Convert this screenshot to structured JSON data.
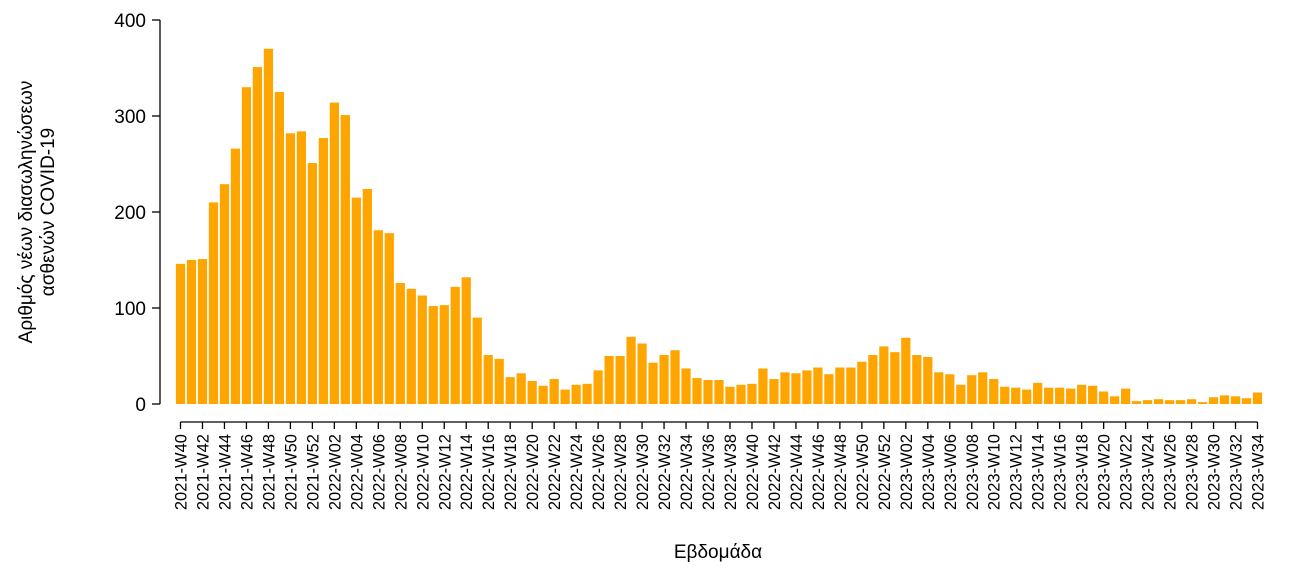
{
  "chart_data": {
    "type": "bar",
    "title": "",
    "xlabel": "Εβδομάδα",
    "ylabel_lines": [
      "Αριθμός νέων διασωληνώσεων",
      "ασθενών COVID-19"
    ],
    "ylim": [
      0,
      400
    ],
    "yticks": [
      0,
      100,
      200,
      300,
      400
    ],
    "bar_color": "#FFA500",
    "grid": false,
    "legend": "none",
    "label_every": 2,
    "categories": [
      "2021-W40",
      "2021-W41",
      "2021-W42",
      "2021-W43",
      "2021-W44",
      "2021-W45",
      "2021-W46",
      "2021-W47",
      "2021-W48",
      "2021-W49",
      "2021-W50",
      "2021-W51",
      "2021-W52",
      "2022-W01",
      "2022-W02",
      "2022-W03",
      "2022-W04",
      "2022-W05",
      "2022-W06",
      "2022-W07",
      "2022-W08",
      "2022-W09",
      "2022-W10",
      "2022-W11",
      "2022-W12",
      "2022-W13",
      "2022-W14",
      "2022-W15",
      "2022-W16",
      "2022-W17",
      "2022-W18",
      "2022-W19",
      "2022-W20",
      "2022-W21",
      "2022-W22",
      "2022-W23",
      "2022-W24",
      "2022-W25",
      "2022-W26",
      "2022-W27",
      "2022-W28",
      "2022-W29",
      "2022-W30",
      "2022-W31",
      "2022-W32",
      "2022-W33",
      "2022-W34",
      "2022-W35",
      "2022-W36",
      "2022-W37",
      "2022-W38",
      "2022-W39",
      "2022-W40",
      "2022-W41",
      "2022-W42",
      "2022-W43",
      "2022-W44",
      "2022-W45",
      "2022-W46",
      "2022-W47",
      "2022-W48",
      "2022-W49",
      "2022-W50",
      "2022-W51",
      "2022-W52",
      "2023-W01",
      "2023-W02",
      "2023-W03",
      "2023-W04",
      "2023-W05",
      "2023-W06",
      "2023-W07",
      "2023-W08",
      "2023-W09",
      "2023-W10",
      "2023-W11",
      "2023-W12",
      "2023-W13",
      "2023-W14",
      "2023-W15",
      "2023-W16",
      "2023-W17",
      "2023-W18",
      "2023-W19",
      "2023-W20",
      "2023-W21",
      "2023-W22",
      "2023-W23",
      "2023-W24",
      "2023-W25",
      "2023-W26",
      "2023-W27",
      "2023-W28",
      "2023-W29",
      "2023-W30",
      "2023-W31",
      "2023-W32",
      "2023-W33",
      "2023-W34"
    ],
    "values": [
      146,
      150,
      151,
      210,
      229,
      266,
      330,
      351,
      370,
      325,
      282,
      284,
      251,
      277,
      314,
      301,
      215,
      224,
      181,
      178,
      126,
      120,
      113,
      102,
      103,
      122,
      132,
      90,
      51,
      47,
      28,
      32,
      24,
      19,
      26,
      15,
      20,
      21,
      35,
      50,
      50,
      70,
      63,
      43,
      51,
      56,
      37,
      27,
      25,
      25,
      18,
      20,
      21,
      37,
      26,
      33,
      32,
      35,
      38,
      31,
      38,
      38,
      44,
      51,
      60,
      54,
      69,
      51,
      49,
      33,
      31,
      20,
      30,
      33,
      26,
      18,
      17,
      15,
      22,
      17,
      17,
      16,
      20,
      19,
      13,
      8,
      16,
      3,
      4,
      5,
      4,
      4,
      5,
      2,
      7,
      9,
      8,
      6,
      12
    ]
  }
}
